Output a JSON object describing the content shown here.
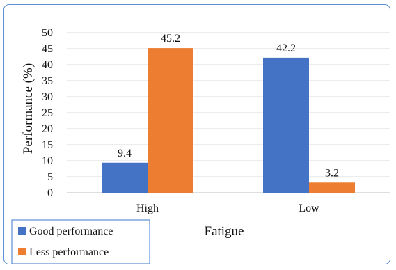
{
  "chart_data": {
    "type": "bar",
    "categories": [
      "High",
      "Low"
    ],
    "series": [
      {
        "name": "Good performance",
        "values": [
          9.4,
          42.2
        ],
        "color": "#4472C4"
      },
      {
        "name": "Less performance",
        "values": [
          45.2,
          3.2
        ],
        "color": "#ED7D31"
      }
    ],
    "data_labels": [
      [
        "9.4",
        "42.2"
      ],
      [
        "45.2",
        "3.2"
      ]
    ],
    "xlabel": "Fatigue",
    "ylabel": "Performance (%)",
    "ylim": [
      0,
      50
    ],
    "yticks": [
      "0",
      "5",
      "10",
      "15",
      "20",
      "25",
      "30",
      "35",
      "40",
      "45",
      "50"
    ],
    "grid": true,
    "legend_position": "bottom-left"
  }
}
